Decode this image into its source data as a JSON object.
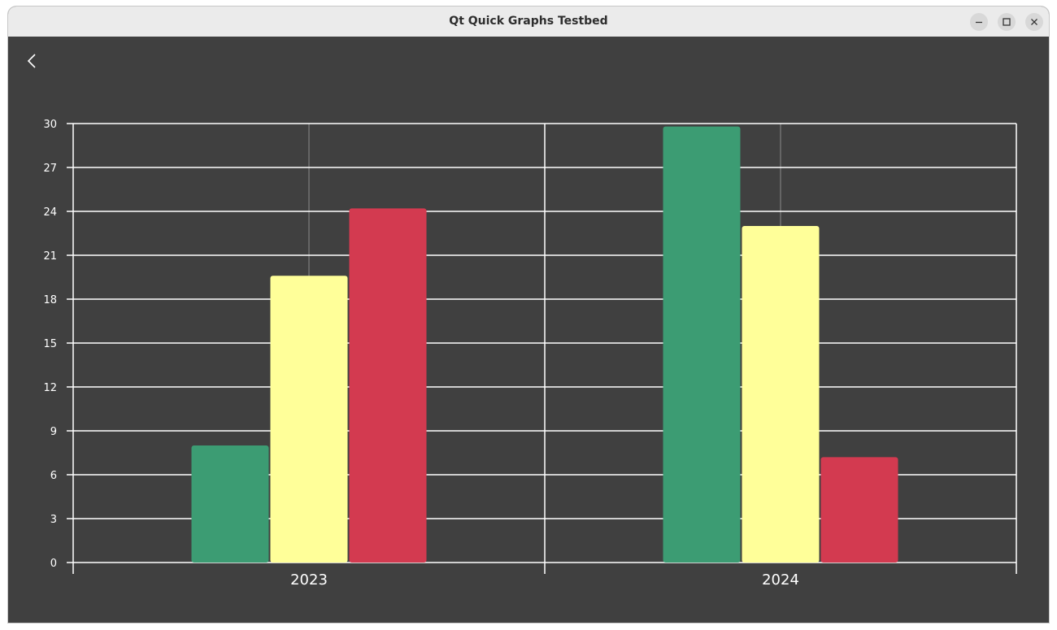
{
  "window": {
    "title": "Qt Quick Graphs Testbed",
    "controls": [
      "minimize-icon",
      "maximize-icon",
      "close-icon"
    ]
  },
  "navigation": {
    "back_icon": "chevron-left-icon"
  },
  "chart_data": {
    "type": "bar",
    "title": "",
    "xlabel": "",
    "ylabel": "",
    "categories": [
      "2023",
      "2024"
    ],
    "series": [
      {
        "color": "#3c9c73",
        "values": [
          8,
          29.8
        ]
      },
      {
        "color": "#ffff99",
        "values": [
          19.6,
          23
        ]
      },
      {
        "color": "#d33a50",
        "values": [
          24.2,
          7.2
        ]
      }
    ],
    "ylim": [
      0,
      30
    ],
    "yticks": [
      "0",
      "3",
      "6",
      "9",
      "12",
      "15",
      "18",
      "21",
      "24",
      "27",
      "30"
    ],
    "grid": true,
    "legend": "none"
  },
  "colors": {
    "background": "#404040",
    "grid": "#ffffff",
    "text": "#ffffff"
  }
}
